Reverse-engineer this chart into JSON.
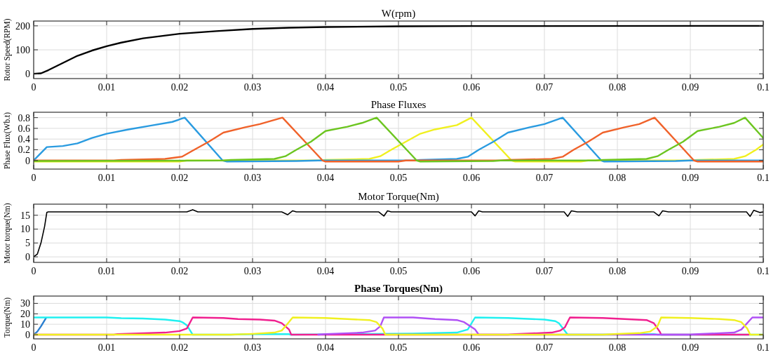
{
  "chart_data": [
    {
      "type": "line",
      "title": "W(rpm)",
      "ylabel": "Rotor Speed(RPM)",
      "xlim": [
        0,
        0.1
      ],
      "ylim": [
        -20,
        220
      ],
      "xticks": [
        0,
        0.01,
        0.02,
        0.03,
        0.04,
        0.05,
        0.06,
        0.07,
        0.08,
        0.09,
        0.1
      ],
      "yticks": [
        0,
        100,
        200
      ],
      "grid": true,
      "series": [
        {
          "color": "#000000",
          "x": [
            0,
            0.001,
            0.002,
            0.004,
            0.006,
            0.008,
            0.01,
            0.012,
            0.015,
            0.02,
            0.025,
            0.03,
            0.035,
            0.04,
            0.05,
            0.06,
            0.1
          ],
          "values": [
            0,
            2,
            15,
            45,
            75,
            97,
            115,
            130,
            148,
            167,
            178,
            187,
            192,
            195,
            198,
            199,
            200
          ]
        }
      ]
    },
    {
      "type": "line",
      "title": "Phase Fluxes",
      "ylabel": "Phase Flux(Wb.t)",
      "xlim": [
        0,
        0.1
      ],
      "ylim": [
        -0.16,
        0.9
      ],
      "xticks": [
        0,
        0.01,
        0.02,
        0.03,
        0.04,
        0.05,
        0.06,
        0.07,
        0.08,
        0.09,
        0.1
      ],
      "yticks": [
        0,
        0.2,
        0.4,
        0.6,
        0.8
      ],
      "grid": true,
      "series": [
        {
          "color": "#f0f020",
          "x": [
            0,
            0.02,
            0.021,
            0.039,
            0.04,
            0.046,
            0.0475,
            0.049,
            0.051,
            0.053,
            0.055,
            0.058,
            0.06,
            0.0655,
            0.066,
            0.075,
            0.076,
            0.09,
            0.091,
            0.096,
            0.0975,
            0.099,
            0.1
          ],
          "values": [
            -0.02,
            -0.02,
            0,
            0,
            0.01,
            0.03,
            0.08,
            0.2,
            0.35,
            0.5,
            0.58,
            0.66,
            0.8,
            0,
            -0.02,
            -0.02,
            0,
            0,
            0.01,
            0.03,
            0.08,
            0.2,
            0.3
          ]
        },
        {
          "color": "#2a9be0",
          "x": [
            0,
            0.0018,
            0.004,
            0.006,
            0.008,
            0.01,
            0.013,
            0.016,
            0.019,
            0.0207,
            0.0259,
            0.0265,
            0.036,
            0.039,
            0.052,
            0.053,
            0.058,
            0.0595,
            0.061,
            0.063,
            0.065,
            0.068,
            0.07,
            0.0725,
            0.0778,
            0.0782,
            0.088,
            0.09,
            0.1
          ],
          "values": [
            0,
            0.25,
            0.27,
            0.32,
            0.42,
            0.5,
            0.58,
            0.65,
            0.72,
            0.8,
            0,
            -0.02,
            -0.01,
            0,
            0,
            0.01,
            0.03,
            0.07,
            0.2,
            0.35,
            0.52,
            0.62,
            0.68,
            0.8,
            0,
            -0.02,
            -0.01,
            0,
            0
          ]
        },
        {
          "color": "#f0622a",
          "x": [
            0,
            0.011,
            0.012,
            0.018,
            0.0203,
            0.022,
            0.024,
            0.026,
            0.029,
            0.031,
            0.0341,
            0.0396,
            0.04,
            0.05,
            0.051,
            0.064,
            0.065,
            0.071,
            0.0725,
            0.074,
            0.076,
            0.078,
            0.081,
            0.083,
            0.0851,
            0.0905,
            0.091,
            0.1
          ],
          "values": [
            0,
            0,
            0.01,
            0.03,
            0.07,
            0.2,
            0.35,
            0.52,
            0.62,
            0.68,
            0.8,
            0,
            -0.02,
            -0.02,
            0,
            0,
            0.01,
            0.03,
            0.07,
            0.2,
            0.35,
            0.52,
            0.62,
            0.68,
            0.8,
            0,
            -0.02,
            -0.02
          ]
        },
        {
          "color": "#6cc520",
          "x": [
            0,
            0.026,
            0.027,
            0.033,
            0.0345,
            0.036,
            0.038,
            0.04,
            0.043,
            0.045,
            0.047,
            0.0525,
            0.053,
            0.063,
            0.064,
            0.077,
            0.078,
            0.084,
            0.0855,
            0.087,
            0.089,
            0.091,
            0.094,
            0.096,
            0.0975,
            0.1
          ],
          "values": [
            -0.01,
            0,
            0.01,
            0.03,
            0.08,
            0.2,
            0.35,
            0.55,
            0.63,
            0.7,
            0.8,
            0,
            -0.02,
            -0.01,
            0,
            0,
            0.01,
            0.03,
            0.08,
            0.2,
            0.35,
            0.55,
            0.63,
            0.7,
            0.8,
            0.42
          ]
        }
      ]
    },
    {
      "type": "line",
      "title": "Motor Torque(Nm)",
      "ylabel": "Motor torque(Nm)",
      "xlim": [
        0,
        0.1
      ],
      "ylim": [
        -2,
        19
      ],
      "xticks": [
        0,
        0.01,
        0.02,
        0.03,
        0.04,
        0.05,
        0.06,
        0.07,
        0.08,
        0.09,
        0.1
      ],
      "yticks": [
        0,
        5,
        10,
        15
      ],
      "grid": true,
      "series": [
        {
          "color": "#000000",
          "x": [
            0,
            0.0005,
            0.001,
            0.0015,
            0.0018,
            0.002,
            0.021,
            0.0218,
            0.0225,
            0.034,
            0.0348,
            0.0355,
            0.036,
            0.0473,
            0.048,
            0.0485,
            0.049,
            0.06,
            0.0605,
            0.061,
            0.0615,
            0.0727,
            0.0732,
            0.0737,
            0.0745,
            0.085,
            0.0857,
            0.0862,
            0.087,
            0.0977,
            0.0982,
            0.0987,
            0.0995,
            0.1
          ],
          "values": [
            0,
            1,
            5,
            11,
            16,
            16.2,
            16.2,
            17,
            16.2,
            16.2,
            15.2,
            16.6,
            16.2,
            16.2,
            14.7,
            16.6,
            16.2,
            16.2,
            14.8,
            16.6,
            16.2,
            16.2,
            14.6,
            16.6,
            16.2,
            16.2,
            14.8,
            16.6,
            16.2,
            16.2,
            14.6,
            16.8,
            16,
            16.2
          ]
        }
      ]
    },
    {
      "type": "line",
      "title": "Phase Torques(Nm)",
      "ylabel": "Torque(Nm)",
      "xlim": [
        0,
        0.1
      ],
      "ylim": [
        -4,
        37
      ],
      "xticks": [
        0,
        0.01,
        0.02,
        0.03,
        0.04,
        0.05,
        0.06,
        0.07,
        0.08,
        0.09,
        0.1
      ],
      "yticks": [
        0,
        10,
        20,
        30
      ],
      "grid": true,
      "series": [
        {
          "color": "#2a7fd0",
          "x": [
            0,
            0.0005,
            0.001,
            0.0017
          ],
          "values": [
            0,
            3,
            8,
            16
          ]
        },
        {
          "color": "#20f0f0",
          "x": [
            0,
            0.01,
            0.012,
            0.015,
            0.018,
            0.02,
            0.0205,
            0.021,
            0.0218,
            0.027,
            0.03,
            0.035,
            0.0352,
            0.052,
            0.058,
            0.0595,
            0.0605,
            0.065,
            0.07,
            0.0715,
            0.072,
            0.0732,
            0.078,
            0.085,
            0.0855,
            0.1
          ],
          "values": [
            16.5,
            16.5,
            15.8,
            15.5,
            14.5,
            13,
            11.5,
            9,
            0,
            0,
            0.5,
            0.5,
            0,
            1,
            2,
            5,
            16.5,
            16,
            14.5,
            13,
            11,
            0,
            0,
            0.5,
            0,
            0
          ]
        },
        {
          "color": "#f0208f",
          "x": [
            0,
            0.011,
            0.0115,
            0.018,
            0.02,
            0.021,
            0.0218,
            0.026,
            0.028,
            0.031,
            0.033,
            0.034,
            0.035,
            0.0353,
            0.065,
            0.066,
            0.071,
            0.0722,
            0.0728,
            0.0735,
            0.078,
            0.081,
            0.084,
            0.085,
            0.0858,
            0.086,
            0.098
          ],
          "values": [
            0,
            0,
            0.5,
            2,
            3.5,
            6,
            16.5,
            16,
            15,
            14.5,
            13.5,
            11,
            5,
            0,
            0,
            0.5,
            2,
            4,
            7,
            16.5,
            16,
            15,
            14,
            11,
            3,
            0,
            0
          ]
        },
        {
          "color": "#b050f5",
          "x": [
            0.039,
            0.04,
            0.045,
            0.0468,
            0.0475,
            0.048,
            0.052,
            0.055,
            0.058,
            0.059,
            0.0605,
            0.061,
            0.09,
            0.091,
            0.096,
            0.097,
            0.0985,
            0.1
          ],
          "values": [
            0,
            0.5,
            2,
            4,
            8,
            16.5,
            16.5,
            15,
            14,
            12,
            5,
            0,
            0,
            0.5,
            2,
            5,
            16.5,
            16.5
          ]
        },
        {
          "color": "#f0f020",
          "x": [
            0,
            0.027,
            0.03,
            0.033,
            0.034,
            0.0345,
            0.0355,
            0.04,
            0.043,
            0.046,
            0.047,
            0.0478,
            0.0482,
            0.078,
            0.08,
            0.083,
            0.0845,
            0.0855,
            0.086,
            0.09,
            0.094,
            0.096,
            0.097,
            0.0978,
            0.0982,
            0.1
          ],
          "values": [
            0,
            0,
            0.8,
            2,
            4,
            8,
            16.5,
            16,
            15,
            14,
            12,
            6,
            0,
            0,
            0.7,
            1.5,
            3,
            8,
            16.5,
            16,
            15,
            14,
            12,
            6,
            0,
            0
          ]
        }
      ]
    }
  ]
}
